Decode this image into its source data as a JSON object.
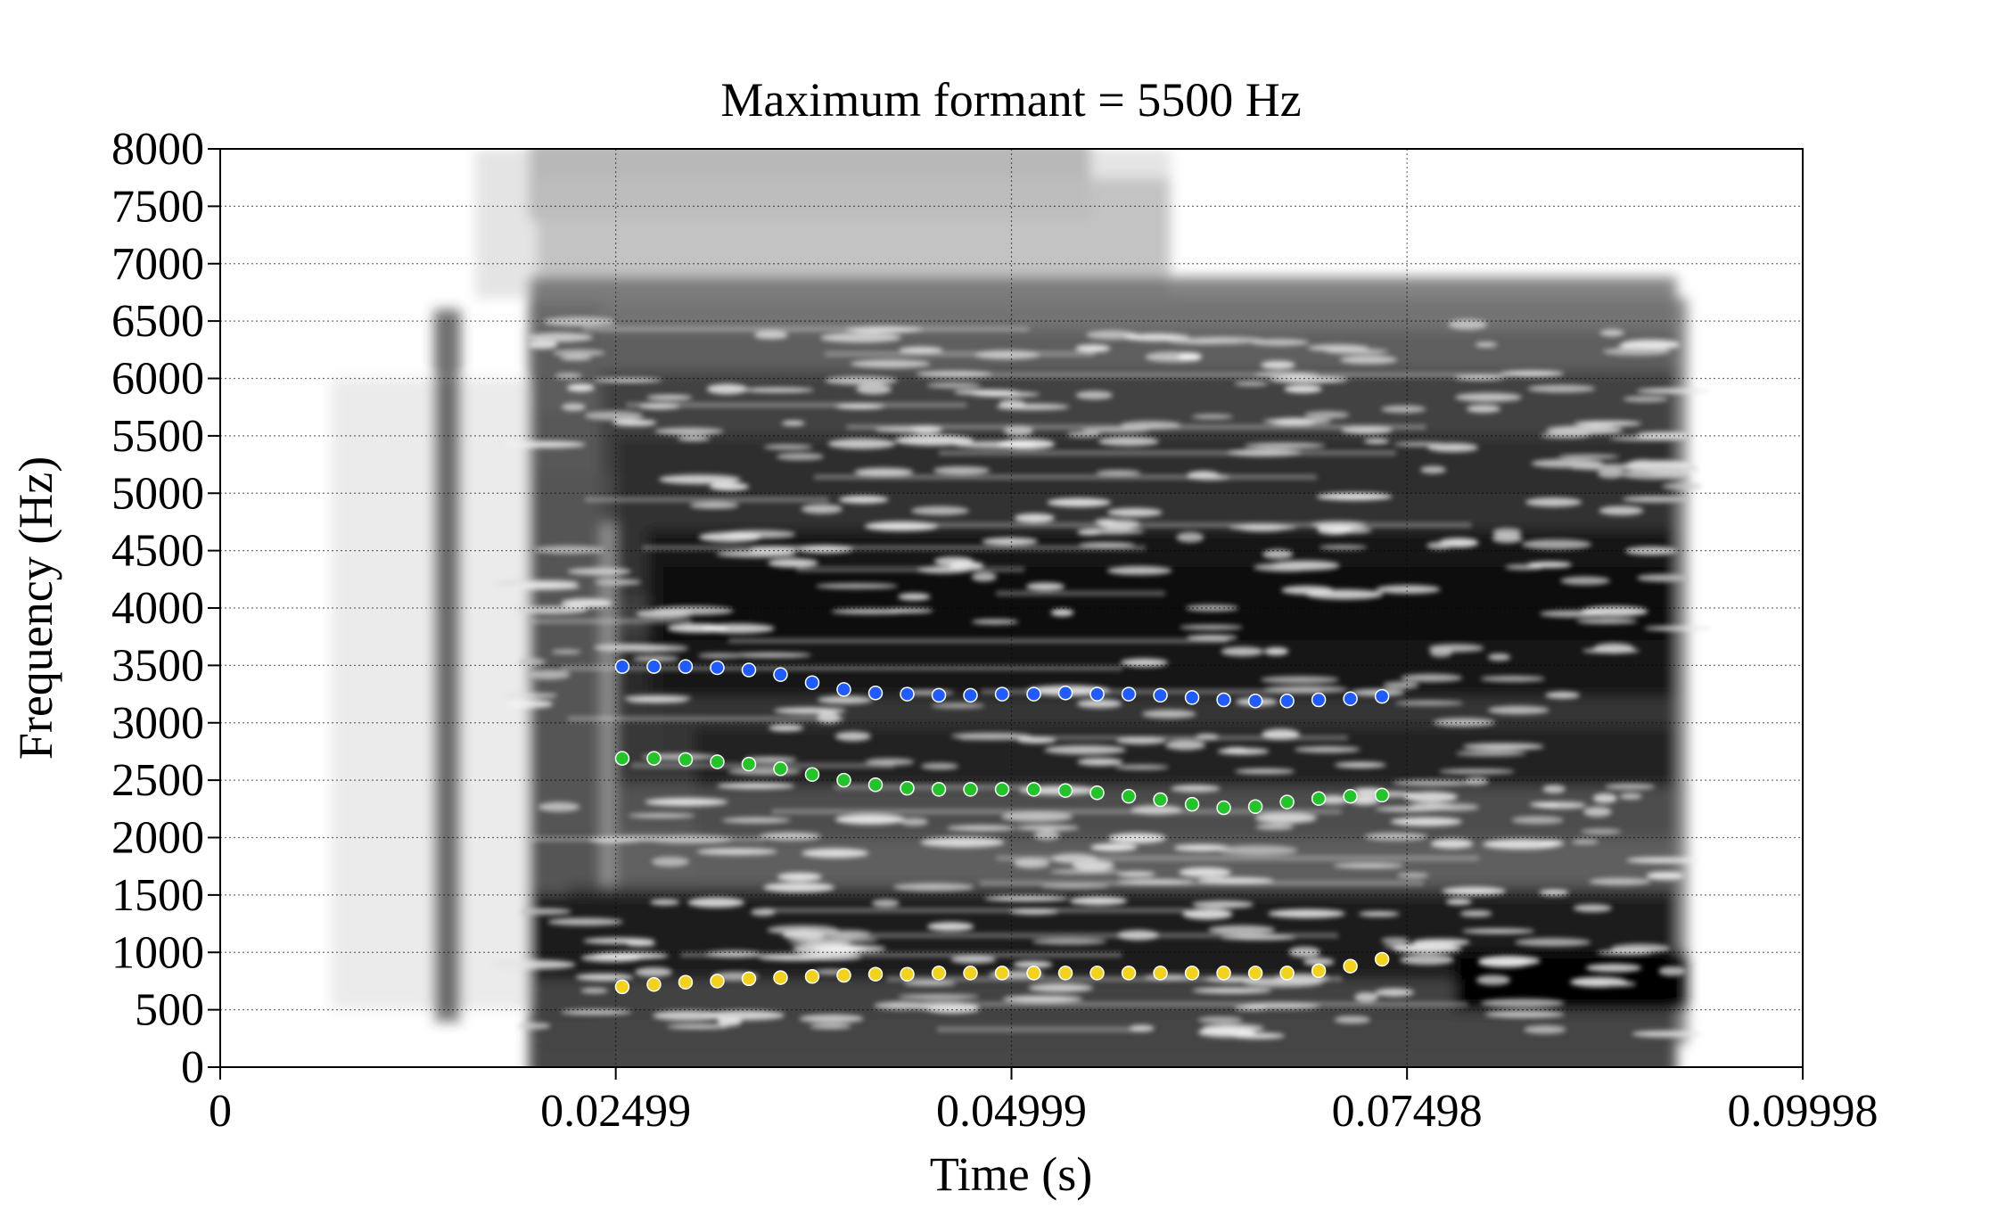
{
  "chart_data": {
    "type": "scatter",
    "title": "Maximum formant = 5500 Hz",
    "xlabel": "Time (s)",
    "ylabel": "Frequency (Hz)",
    "xlim": [
      0,
      0.09998
    ],
    "ylim": [
      0,
      8000
    ],
    "x_ticks": [
      "0",
      "0.02499",
      "0.04999",
      "0.07498",
      "0.09998"
    ],
    "x_tick_values": [
      0,
      0.02499,
      0.04999,
      0.07498,
      0.09998
    ],
    "y_ticks": [
      "0",
      "500",
      "1000",
      "1500",
      "2000",
      "2500",
      "3000",
      "3500",
      "4000",
      "4500",
      "5000",
      "5500",
      "6000",
      "6500",
      "7000",
      "7500",
      "8000"
    ],
    "y_tick_values": [
      0,
      500,
      1000,
      1500,
      2000,
      2500,
      3000,
      3500,
      4000,
      4500,
      5000,
      5500,
      6000,
      6500,
      7000,
      7500,
      8000
    ],
    "grid": true,
    "background": "spectrogram (grayscale)",
    "colors": {
      "F1": "#f2d21a",
      "F2": "#22c42a",
      "F3": "#1f5bff",
      "spectrogram_dark": "#000000",
      "spectrogram_light": "#ffffff"
    },
    "x": [
      0.0254,
      0.0274,
      0.0294,
      0.0314,
      0.0334,
      0.0354,
      0.0374,
      0.0394,
      0.0414,
      0.0434,
      0.0454,
      0.0474,
      0.0494,
      0.0514,
      0.0534,
      0.0554,
      0.0574,
      0.0594,
      0.0614,
      0.0634,
      0.0654,
      0.0674,
      0.0694,
      0.0714,
      0.0734
    ],
    "series": [
      {
        "key": "F3",
        "values": [
          3490,
          3490,
          3490,
          3480,
          3460,
          3420,
          3350,
          3290,
          3260,
          3250,
          3240,
          3240,
          3250,
          3250,
          3260,
          3250,
          3250,
          3240,
          3220,
          3200,
          3190,
          3190,
          3200,
          3210,
          3230
        ]
      },
      {
        "key": "F2",
        "values": [
          2690,
          2690,
          2680,
          2660,
          2640,
          2600,
          2550,
          2500,
          2460,
          2430,
          2420,
          2420,
          2420,
          2420,
          2410,
          2390,
          2360,
          2330,
          2290,
          2260,
          2270,
          2310,
          2340,
          2360,
          2370
        ]
      },
      {
        "key": "F1",
        "values": [
          700,
          720,
          740,
          750,
          770,
          780,
          790,
          800,
          810,
          810,
          820,
          820,
          820,
          820,
          820,
          820,
          820,
          820,
          820,
          820,
          820,
          820,
          840,
          880,
          940
        ]
      }
    ]
  }
}
